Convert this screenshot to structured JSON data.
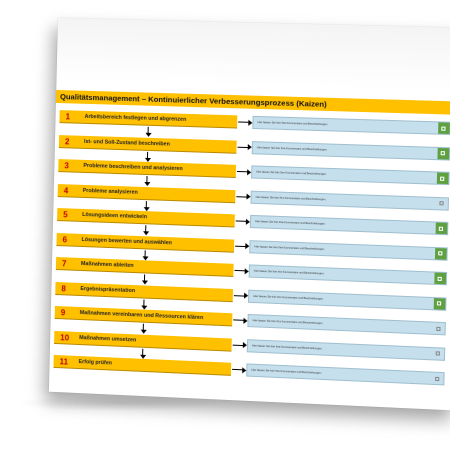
{
  "document": {
    "title": "Qualitätsmanagement – Kontinuierlicher Verbesserungsprozess (Kaizen)",
    "comment_placeholder": "Hier fassen Sie hier Ihre Kommentare und Beschreibungen.",
    "colors": {
      "step": "#ffc000",
      "number": "#c00000",
      "comment": "#c5dfec",
      "done": "#5fa041"
    },
    "steps": [
      {
        "number": "1",
        "label": "Arbeitsbereich festlegen und abgrenzen",
        "status": "done"
      },
      {
        "number": "2",
        "label": "Ist- und Soll-Zustand beschreiben",
        "status": "done"
      },
      {
        "number": "3",
        "label": "Probleme beschreiben und analysieren",
        "status": "done"
      },
      {
        "number": "4",
        "label": "Probleme analysieren",
        "status": "open"
      },
      {
        "number": "5",
        "label": "Lösungsideen entwickeln",
        "status": "done"
      },
      {
        "number": "6",
        "label": "Lösungen bewerten und auswählen",
        "status": "done"
      },
      {
        "number": "7",
        "label": "Maßnahmen ableiten",
        "status": "done"
      },
      {
        "number": "8",
        "label": "Ergebnispräsentation",
        "status": "done"
      },
      {
        "number": "9",
        "label": "Maßnahmen vereinbaren und Ressourcen klären",
        "status": "open"
      },
      {
        "number": "10",
        "label": "Maßnahmen umsetzen",
        "status": "open"
      },
      {
        "number": "11",
        "label": "Erfolg prüfen",
        "status": "open"
      }
    ]
  }
}
